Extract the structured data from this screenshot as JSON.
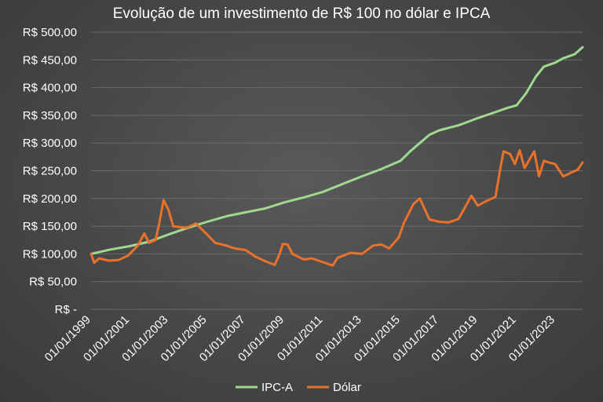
{
  "chart_data": {
    "type": "line",
    "title": "Evolução de um investimento de R$ 100 no dólar e IPCA",
    "xlabel": "",
    "ylabel": "",
    "xlim": [
      "1999-01-01",
      "2024-06-01"
    ],
    "ylim": [
      0,
      500
    ],
    "grid": true,
    "legend_position": "bottom",
    "x_tick_labels": [
      "01/01/1999",
      "01/01/2001",
      "01/01/2003",
      "01/01/2005",
      "01/01/2007",
      "01/01/2009",
      "01/01/2011",
      "01/01/2013",
      "01/01/2015",
      "01/01/2017",
      "01/01/2019",
      "01/01/2021",
      "01/01/2023"
    ],
    "x_tick_dates": [
      "1999-01-01",
      "2001-01-01",
      "2003-01-01",
      "2005-01-01",
      "2007-01-01",
      "2009-01-01",
      "2011-01-01",
      "2013-01-01",
      "2015-01-01",
      "2017-01-01",
      "2019-01-01",
      "2021-01-01",
      "2023-01-01"
    ],
    "y_tick_labels": [
      "R$ -",
      "R$ 50,00",
      "R$ 100,00",
      "R$ 150,00",
      "R$ 200,00",
      "R$ 250,00",
      "R$ 300,00",
      "R$ 350,00",
      "R$ 400,00",
      "R$ 450,00",
      "R$ 500,00"
    ],
    "y_tick_values": [
      0,
      50,
      100,
      150,
      200,
      250,
      300,
      350,
      400,
      450,
      500
    ],
    "series": [
      {
        "name": "IPC-A",
        "color": "#9fd88f",
        "points": [
          [
            "1999-01-01",
            100
          ],
          [
            "2000-01-01",
            108
          ],
          [
            "2001-01-01",
            114
          ],
          [
            "2002-01-01",
            122
          ],
          [
            "2003-01-01",
            135
          ],
          [
            "2004-01-01",
            147
          ],
          [
            "2005-01-01",
            158
          ],
          [
            "2006-01-01",
            168
          ],
          [
            "2007-01-01",
            175
          ],
          [
            "2008-01-01",
            182
          ],
          [
            "2009-01-01",
            193
          ],
          [
            "2010-01-01",
            202
          ],
          [
            "2011-01-01",
            212
          ],
          [
            "2012-01-01",
            226
          ],
          [
            "2013-01-01",
            240
          ],
          [
            "2014-01-01",
            253
          ],
          [
            "2015-01-01",
            268
          ],
          [
            "2015-07-01",
            285
          ],
          [
            "2016-01-01",
            300
          ],
          [
            "2016-07-01",
            315
          ],
          [
            "2017-01-01",
            323
          ],
          [
            "2018-01-01",
            332
          ],
          [
            "2019-01-01",
            345
          ],
          [
            "2020-01-01",
            357
          ],
          [
            "2020-07-01",
            363
          ],
          [
            "2021-01-01",
            368
          ],
          [
            "2021-07-01",
            390
          ],
          [
            "2022-01-01",
            420
          ],
          [
            "2022-06-01",
            438
          ],
          [
            "2023-01-01",
            445
          ],
          [
            "2023-06-01",
            453
          ],
          [
            "2024-01-01",
            460
          ],
          [
            "2024-06-01",
            473
          ]
        ]
      },
      {
        "name": "Dólar",
        "color": "#e8722c",
        "points": [
          [
            "1999-01-01",
            100
          ],
          [
            "1999-03-01",
            84
          ],
          [
            "1999-06-01",
            92
          ],
          [
            "1999-12-01",
            88
          ],
          [
            "2000-06-01",
            89
          ],
          [
            "2000-12-01",
            97
          ],
          [
            "2001-06-01",
            115
          ],
          [
            "2001-10-01",
            137
          ],
          [
            "2002-01-01",
            120
          ],
          [
            "2002-05-01",
            125
          ],
          [
            "2002-07-01",
            150
          ],
          [
            "2002-10-01",
            197
          ],
          [
            "2003-01-01",
            180
          ],
          [
            "2003-04-01",
            150
          ],
          [
            "2003-12-01",
            147
          ],
          [
            "2004-06-01",
            155
          ],
          [
            "2005-01-01",
            135
          ],
          [
            "2005-06-01",
            120
          ],
          [
            "2006-01-01",
            115
          ],
          [
            "2006-06-01",
            110
          ],
          [
            "2007-01-01",
            107
          ],
          [
            "2007-07-01",
            95
          ],
          [
            "2008-01-01",
            87
          ],
          [
            "2008-07-01",
            80
          ],
          [
            "2008-10-01",
            100
          ],
          [
            "2008-12-01",
            118
          ],
          [
            "2009-03-01",
            117
          ],
          [
            "2009-06-01",
            100
          ],
          [
            "2010-01-01",
            90
          ],
          [
            "2010-06-01",
            92
          ],
          [
            "2011-01-01",
            85
          ],
          [
            "2011-07-01",
            79
          ],
          [
            "2011-10-01",
            93
          ],
          [
            "2012-06-01",
            102
          ],
          [
            "2013-01-01",
            100
          ],
          [
            "2013-08-01",
            115
          ],
          [
            "2014-01-01",
            117
          ],
          [
            "2014-06-01",
            110
          ],
          [
            "2014-12-01",
            130
          ],
          [
            "2015-03-01",
            155
          ],
          [
            "2015-09-01",
            190
          ],
          [
            "2016-01-01",
            200
          ],
          [
            "2016-07-01",
            162
          ],
          [
            "2017-01-01",
            158
          ],
          [
            "2017-07-01",
            157
          ],
          [
            "2018-01-01",
            163
          ],
          [
            "2018-09-01",
            205
          ],
          [
            "2019-01-01",
            187
          ],
          [
            "2019-06-01",
            195
          ],
          [
            "2019-12-01",
            203
          ],
          [
            "2020-03-01",
            255
          ],
          [
            "2020-05-01",
            285
          ],
          [
            "2020-09-01",
            280
          ],
          [
            "2020-12-01",
            262
          ],
          [
            "2021-03-01",
            287
          ],
          [
            "2021-06-01",
            255
          ],
          [
            "2021-12-01",
            285
          ],
          [
            "2022-03-01",
            240
          ],
          [
            "2022-06-01",
            268
          ],
          [
            "2022-09-01",
            265
          ],
          [
            "2023-01-01",
            262
          ],
          [
            "2023-06-01",
            240
          ],
          [
            "2023-12-01",
            248
          ],
          [
            "2024-03-01",
            252
          ],
          [
            "2024-06-01",
            265
          ]
        ]
      }
    ]
  }
}
